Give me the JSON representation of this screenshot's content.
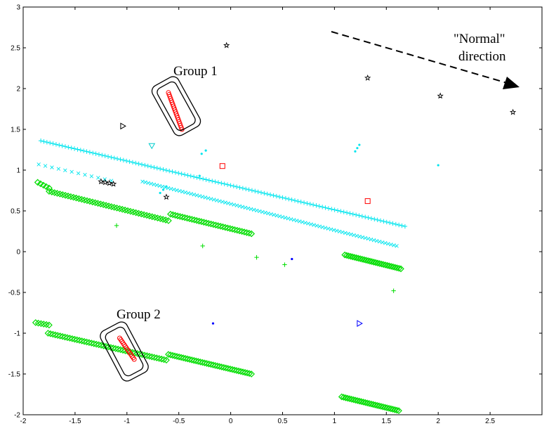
{
  "chart_data": {
    "type": "scatter",
    "title": "",
    "xlabel": "",
    "ylabel": "",
    "xlim": [
      -2,
      3
    ],
    "ylim": [
      -2,
      3
    ],
    "x_ticks": [
      "-2",
      "-1.5",
      "-1",
      "-0.5",
      "0",
      "0.5",
      "1",
      "1.5",
      "2",
      "2.5"
    ],
    "y_ticks": [
      "-2",
      "-1.5",
      "-1",
      "-0.5",
      "0",
      "0.5",
      "1",
      "1.5",
      "2",
      "2.5",
      "3"
    ],
    "grid": false,
    "annotations": {
      "group1": "Group 1",
      "group2": "Group 2",
      "normal_line1": "\"Normal\"",
      "normal_line2": "direction"
    },
    "series": [
      {
        "marker": "plus",
        "color": "#00E5EE",
        "segments": [
          {
            "x0": -1.83,
            "y0": 1.36,
            "x1": 1.68,
            "y1": 0.31,
            "n": 120
          }
        ]
      },
      {
        "marker": "x",
        "color": "#00E5EE",
        "segments": [
          {
            "x0": -1.85,
            "y0": 1.07,
            "x1": -1.15,
            "y1": 0.87,
            "n": 12
          },
          {
            "x0": -0.85,
            "y0": 0.86,
            "x1": 1.6,
            "y1": 0.07,
            "n": 90
          }
        ]
      },
      {
        "marker": "dot",
        "color": "#00E5EE",
        "points": [
          [
            -0.28,
            1.2
          ],
          [
            -0.24,
            1.24
          ],
          [
            -0.68,
            0.72
          ],
          [
            -0.65,
            0.76
          ],
          [
            -0.62,
            0.8
          ],
          [
            1.2,
            1.23
          ],
          [
            1.22,
            1.27
          ],
          [
            1.24,
            1.31
          ],
          [
            -0.3,
            0.93
          ],
          [
            2.0,
            1.06
          ]
        ]
      },
      {
        "marker": "diamond",
        "color": "#00DD00",
        "segments": [
          {
            "x0": -1.86,
            "y0": 0.85,
            "x1": -1.75,
            "y1": 0.78,
            "n": 5
          },
          {
            "x0": -1.75,
            "y0": 0.74,
            "x1": -0.6,
            "y1": 0.38,
            "n": 45
          },
          {
            "x0": -0.58,
            "y0": 0.46,
            "x1": 0.2,
            "y1": 0.22,
            "n": 35
          },
          {
            "x0": 1.1,
            "y0": -0.04,
            "x1": 1.64,
            "y1": -0.21,
            "n": 30
          },
          {
            "x0": -1.88,
            "y0": -0.87,
            "x1": -1.75,
            "y1": -0.9,
            "n": 6
          },
          {
            "x0": -1.76,
            "y0": -1.0,
            "x1": -0.62,
            "y1": -1.33,
            "n": 50
          },
          {
            "x0": -0.6,
            "y0": -1.26,
            "x1": 0.2,
            "y1": -1.5,
            "n": 40
          },
          {
            "x0": 1.07,
            "y0": -1.78,
            "x1": 1.62,
            "y1": -1.95,
            "n": 30
          }
        ]
      },
      {
        "marker": "plus",
        "color": "#00DD00",
        "points": [
          [
            -1.1,
            0.32
          ],
          [
            -0.27,
            0.07
          ],
          [
            0.25,
            -0.07
          ],
          [
            0.52,
            -0.16
          ],
          [
            1.57,
            -0.48
          ]
        ]
      },
      {
        "marker": "circle",
        "color": "#FF0000",
        "segments": [
          {
            "x0": -0.6,
            "y0": 1.95,
            "x1": -0.47,
            "y1": 1.5,
            "n": 20
          },
          {
            "x0": -1.07,
            "y0": -1.06,
            "x1": -0.93,
            "y1": -1.32,
            "n": 14
          }
        ]
      },
      {
        "marker": "square",
        "color": "#FF0000",
        "points": [
          [
            -0.08,
            1.05
          ],
          [
            1.32,
            0.62
          ]
        ]
      },
      {
        "marker": "star",
        "color": "#000000",
        "points": [
          [
            -0.04,
            2.53
          ],
          [
            1.32,
            2.13
          ],
          [
            2.02,
            1.91
          ],
          [
            2.72,
            1.71
          ],
          [
            -1.25,
            0.86
          ],
          [
            -1.21,
            0.85
          ],
          [
            -1.17,
            0.84
          ],
          [
            -1.13,
            0.83
          ],
          [
            -0.62,
            0.67
          ]
        ]
      },
      {
        "marker": "tri-right",
        "color": "#000000",
        "points": [
          [
            -1.04,
            1.54
          ]
        ]
      },
      {
        "marker": "tri-down",
        "color": "#00CDCD",
        "points": [
          [
            -0.76,
            1.3
          ]
        ]
      },
      {
        "marker": "dot",
        "color": "#0000FF",
        "points": [
          [
            0.59,
            -0.09
          ],
          [
            -0.17,
            -0.88
          ]
        ]
      },
      {
        "marker": "tri-right",
        "color": "#0000FF",
        "points": [
          [
            1.24,
            -0.88
          ]
        ]
      }
    ]
  }
}
